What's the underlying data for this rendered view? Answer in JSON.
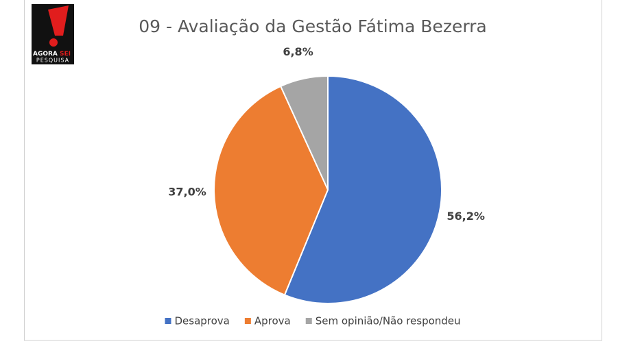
{
  "logo": {
    "brand": [
      "AGORA",
      "SEI"
    ],
    "tagline": "PESQUISA"
  },
  "chart_data": {
    "type": "pie",
    "title": "09 - Avaliação da Gestão Fátima Bezerra",
    "categories": [
      "Desaprova",
      "Aprova",
      "Sem opinião/Não respondeu"
    ],
    "values": [
      56.2,
      37.0,
      6.8
    ],
    "value_labels": [
      "56,2%",
      "37,0%",
      "6,8%"
    ],
    "colors": [
      "#4472c4",
      "#ed7d31",
      "#a5a5a5"
    ],
    "legend": "bottom"
  }
}
